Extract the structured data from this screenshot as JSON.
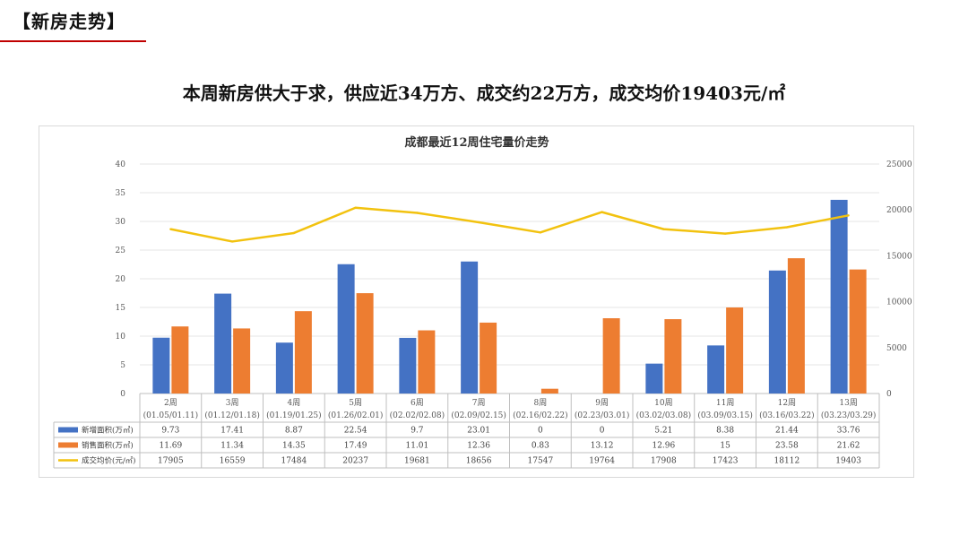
{
  "section_title": "【新房走势】",
  "headline": "本周新房供大于求，供应近34万方、成交约22万方，成交均价19403元/㎡",
  "colors": {
    "supply": "#4472c4",
    "sales": "#ed7d31",
    "price": "#f2c20f",
    "rule": "#c00000"
  },
  "chart_data": {
    "type": "bar",
    "title": "成都最近12周住宅量价走势",
    "categories": [
      "2周",
      "3周",
      "4周",
      "5周",
      "6周",
      "7周",
      "8周",
      "9周",
      "10周",
      "11周",
      "12周",
      "13周"
    ],
    "date_ranges": [
      "(01.05/01.11)",
      "(01.12/01.18)",
      "(01.19/01.25)",
      "(01.26/02.01)",
      "(02.02/02.08)",
      "(02.09/02.15)",
      "(02.16/02.22)",
      "(02.23/03.01)",
      "(03.02/03.08)",
      "(03.09/03.15)",
      "(03.16/03.22)",
      "(03.23/03.29)"
    ],
    "series": [
      {
        "name": "新增面积(万㎡)",
        "type": "bar",
        "axis": "left",
        "values": [
          9.73,
          17.41,
          8.87,
          22.54,
          9.7,
          23.01,
          0,
          0,
          5.21,
          8.38,
          21.44,
          33.76
        ],
        "labels": [
          "9.73",
          "17.41",
          "8.87",
          "22.54",
          "9.7",
          "23.01",
          "0",
          "0",
          "5.21",
          "8.38",
          "21.44",
          "33.76"
        ]
      },
      {
        "name": "销售面积(万㎡)",
        "type": "bar",
        "axis": "left",
        "values": [
          11.69,
          11.34,
          14.35,
          17.49,
          11.01,
          12.36,
          0.83,
          13.12,
          12.96,
          15,
          23.58,
          21.62
        ],
        "labels": [
          "11.69",
          "11.34",
          "14.35",
          "17.49",
          "11.01",
          "12.36",
          "0.83",
          "13.12",
          "12.96",
          "15",
          "23.58",
          "21.62"
        ]
      },
      {
        "name": "成交均价(元/㎡)",
        "type": "line",
        "axis": "right",
        "values": [
          17905,
          16559,
          17484,
          20237,
          19681,
          18656,
          17547,
          19764,
          17908,
          17423,
          18112,
          19403
        ],
        "labels": [
          "17905",
          "16559",
          "17484",
          "20237",
          "19681",
          "18656",
          "17547",
          "19764",
          "17908",
          "17423",
          "18112",
          "19403"
        ]
      }
    ],
    "ylim_left": [
      0,
      40
    ],
    "yticks_left": [
      "0",
      "5",
      "10",
      "15",
      "20",
      "25",
      "30",
      "35",
      "40"
    ],
    "ylim_right": [
      0,
      25000
    ],
    "yticks_right": [
      "0",
      "5000",
      "10000",
      "15000",
      "20000",
      "25000"
    ],
    "grid": true,
    "legend": "data-table"
  }
}
